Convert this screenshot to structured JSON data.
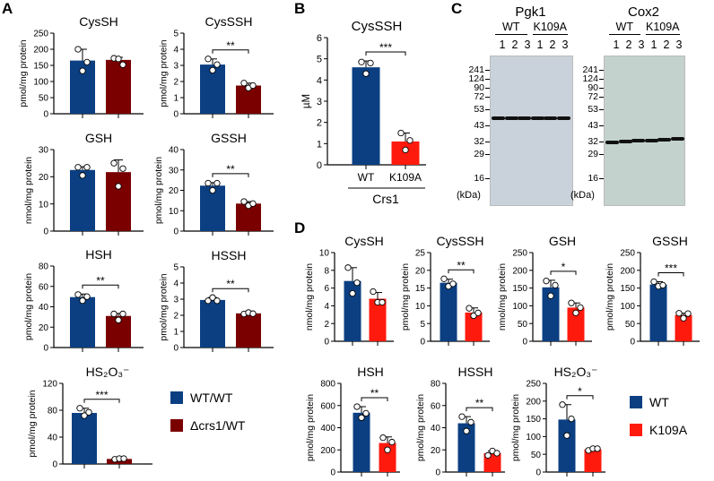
{
  "panel_labels": [
    "A",
    "B",
    "C",
    "D"
  ],
  "legend_A": [
    {
      "label": "WT/WT",
      "color": "#0b3f82"
    },
    {
      "label": "Δcrs1/WT",
      "color": "#7a0000"
    }
  ],
  "legend_D": [
    {
      "label": "WT",
      "color": "#0b3f82"
    },
    {
      "label": "K109A",
      "color": "#ff1a0e"
    }
  ],
  "chart_data": [
    {
      "panel": "A",
      "type": "bar",
      "title": "CysSH",
      "ylabel": "pmol/mg protein",
      "ylim": [
        0,
        250
      ],
      "ticks": [
        0,
        50,
        100,
        150,
        200,
        250
      ],
      "categories": [
        "WT/WT",
        "Δcrs1/WT"
      ],
      "values": [
        165,
        167
      ],
      "sd": [
        35,
        8
      ],
      "points": [
        [
          200,
          133,
          160
        ],
        [
          172,
          170,
          152
        ]
      ],
      "significance": "",
      "colors": [
        "#0b3f82",
        "#7a0000"
      ]
    },
    {
      "panel": "A",
      "type": "bar",
      "title": "CysSSH",
      "ylabel": "pmol/mg protein",
      "ylim": [
        0,
        5
      ],
      "ticks": [
        0,
        1,
        2,
        3,
        4,
        5
      ],
      "categories": [
        "WT/WT",
        "Δcrs1/WT"
      ],
      "values": [
        3.05,
        1.75
      ],
      "sd": [
        0.35,
        0.15
      ],
      "points": [
        [
          3.4,
          2.7,
          3.05
        ],
        [
          1.9,
          1.6,
          1.75
        ]
      ],
      "significance": "**",
      "colors": [
        "#0b3f82",
        "#7a0000"
      ]
    },
    {
      "panel": "A",
      "type": "bar",
      "title": "GSH",
      "ylabel": "nmol/mg protein",
      "ylim": [
        0,
        30
      ],
      "ticks": [
        0,
        10,
        20,
        30
      ],
      "categories": [
        "WT/WT",
        "Δcrs1/WT"
      ],
      "values": [
        22.5,
        21.7
      ],
      "sd": [
        1.2,
        4.5
      ],
      "points": [
        [
          23.5,
          20.5,
          23.5
        ],
        [
          25,
          16.5,
          23
        ]
      ],
      "significance": "",
      "colors": [
        "#0b3f82",
        "#7a0000"
      ]
    },
    {
      "panel": "A",
      "type": "bar",
      "title": "GSSH",
      "ylabel": "pmol/mg protein",
      "ylim": [
        0,
        40
      ],
      "ticks": [
        0,
        10,
        20,
        30,
        40
      ],
      "categories": [
        "WT/WT",
        "Δcrs1/WT"
      ],
      "values": [
        22.3,
        13.5
      ],
      "sd": [
        1.5,
        1
      ],
      "points": [
        [
          23.5,
          20,
          23.5
        ],
        [
          14.5,
          12.5,
          13.5
        ]
      ],
      "significance": "**",
      "colors": [
        "#0b3f82",
        "#7a0000"
      ]
    },
    {
      "panel": "A",
      "type": "bar",
      "title": "HSH",
      "ylabel": "pmol/mg protein",
      "ylim": [
        0,
        80
      ],
      "ticks": [
        0,
        20,
        40,
        60,
        80
      ],
      "categories": [
        "WT/WT",
        "Δcrs1/WT"
      ],
      "values": [
        49.5,
        31
      ],
      "sd": [
        3,
        2.5
      ],
      "points": [
        [
          52,
          46,
          50
        ],
        [
          33,
          27,
          33
        ]
      ],
      "significance": "**",
      "colors": [
        "#0b3f82",
        "#7a0000"
      ]
    },
    {
      "panel": "A",
      "type": "bar",
      "title": "HSSH",
      "ylabel": "pmol/mg protein",
      "ylim": [
        0,
        5
      ],
      "ticks": [
        0,
        1,
        2,
        3,
        4,
        5
      ],
      "categories": [
        "WT/WT",
        "Δcrs1/WT"
      ],
      "values": [
        2.95,
        2.12
      ],
      "sd": [
        0.15,
        0.05
      ],
      "points": [
        [
          2.9,
          3.1,
          2.9
        ],
        [
          2.08,
          2.17,
          2.1
        ]
      ],
      "significance": "**",
      "colors": [
        "#0b3f82",
        "#7a0000"
      ]
    },
    {
      "panel": "A",
      "type": "bar",
      "title": "HS₂O₃⁻",
      "ylabel": "pmol/mg protein",
      "ylim": [
        0,
        120
      ],
      "ticks": [
        0,
        40,
        80,
        120
      ],
      "categories": [
        "WT/WT",
        "Δcrs1/WT"
      ],
      "values": [
        76,
        7.5
      ],
      "sd": [
        7,
        1
      ],
      "points": [
        [
          83,
          72,
          77
        ],
        [
          7,
          8,
          8
        ]
      ],
      "significance": "***",
      "colors": [
        "#0b3f82",
        "#7a0000"
      ]
    },
    {
      "panel": "B",
      "type": "bar",
      "title": "CysSSH",
      "ylabel": "µM",
      "xlabel": "Crs1",
      "ylim": [
        0,
        6
      ],
      "ticks": [
        0,
        1,
        2,
        3,
        4,
        5,
        6
      ],
      "categories": [
        "WT",
        "K109A"
      ],
      "show_categories": true,
      "values": [
        4.6,
        1.1
      ],
      "sd": [
        0.3,
        0.4
      ],
      "points": [
        [
          4.85,
          4.3,
          4.8
        ],
        [
          1.5,
          0.7,
          1.15
        ]
      ],
      "significance": "***",
      "colors": [
        "#0b3f82",
        "#ff1a0e"
      ]
    },
    {
      "panel": "D",
      "type": "bar",
      "title": "CysSH",
      "ylabel": "nmol/mg protein",
      "ylim": [
        0,
        10
      ],
      "ticks": [
        0,
        2,
        4,
        6,
        8,
        10
      ],
      "categories": [
        "WT",
        "K109A"
      ],
      "values": [
        6.8,
        4.8
      ],
      "sd": [
        1.5,
        0.7
      ],
      "points": [
        [
          8.3,
          5.4,
          6.6
        ],
        [
          5.6,
          4.4,
          4.4
        ]
      ],
      "significance": "",
      "colors": [
        "#0b3f82",
        "#ff1a0e"
      ]
    },
    {
      "panel": "D",
      "type": "bar",
      "title": "CysSSH",
      "ylabel": "pmol/mg protein",
      "ylim": [
        0,
        25
      ],
      "ticks": [
        0,
        5,
        10,
        15,
        20,
        25
      ],
      "categories": [
        "WT",
        "K109A"
      ],
      "values": [
        16.5,
        8.1
      ],
      "sd": [
        1,
        1.3
      ],
      "points": [
        [
          17.6,
          15.5,
          16.2
        ],
        [
          9.3,
          7.2,
          8
        ]
      ],
      "significance": "**",
      "colors": [
        "#0b3f82",
        "#ff1a0e"
      ]
    },
    {
      "panel": "D",
      "type": "bar",
      "title": "GSH",
      "ylabel": "nmol/mg protein",
      "ylim": [
        0,
        250
      ],
      "ticks": [
        0,
        50,
        100,
        150,
        200,
        250
      ],
      "categories": [
        "WT",
        "K109A"
      ],
      "values": [
        152,
        95
      ],
      "sd": [
        20,
        13
      ],
      "points": [
        [
          170,
          128,
          158
        ],
        [
          108,
          80,
          95
        ]
      ],
      "significance": "*",
      "colors": [
        "#0b3f82",
        "#ff1a0e"
      ]
    },
    {
      "panel": "D",
      "type": "bar",
      "title": "GSSH",
      "ylabel": "pmol/mg protein",
      "ylim": [
        0,
        250
      ],
      "ticks": [
        0,
        50,
        100,
        150,
        200,
        250
      ],
      "categories": [
        "WT",
        "K109A"
      ],
      "values": [
        160,
        74
      ],
      "sd": [
        8,
        5
      ],
      "points": [
        [
          168,
          155,
          158
        ],
        [
          79,
          65,
          78
        ]
      ],
      "significance": "***",
      "colors": [
        "#0b3f82",
        "#ff1a0e"
      ]
    },
    {
      "panel": "D",
      "type": "bar",
      "title": "HSH",
      "ylabel": "pmol/mg protein",
      "ylim": [
        0,
        800
      ],
      "ticks": [
        0,
        200,
        400,
        600,
        800
      ],
      "categories": [
        "WT",
        "K109A"
      ],
      "values": [
        535,
        262
      ],
      "sd": [
        55,
        55
      ],
      "points": [
        [
          590,
          490,
          530
        ],
        [
          310,
          200,
          270
        ]
      ],
      "significance": "**",
      "colors": [
        "#0b3f82",
        "#ff1a0e"
      ]
    },
    {
      "panel": "D",
      "type": "bar",
      "title": "HSSH",
      "ylabel": "pmol/mg protein",
      "ylim": [
        0,
        80
      ],
      "ticks": [
        0,
        20,
        40,
        60,
        80
      ],
      "categories": [
        "WT",
        "K109A"
      ],
      "values": [
        44,
        17
      ],
      "sd": [
        6,
        2
      ],
      "points": [
        [
          50,
          37,
          45
        ],
        [
          15,
          19,
          17
        ]
      ],
      "significance": "**",
      "colors": [
        "#0b3f82",
        "#ff1a0e"
      ]
    },
    {
      "panel": "D",
      "type": "bar",
      "title": "HS₂O₃⁻",
      "ylabel": "pmol/mg protein",
      "ylim": [
        0,
        250
      ],
      "ticks": [
        0,
        50,
        100,
        150,
        200,
        250
      ],
      "categories": [
        "WT",
        "K109A"
      ],
      "values": [
        148,
        64
      ],
      "sd": [
        42,
        3
      ],
      "points": [
        [
          190,
          103,
          150
        ],
        [
          61,
          66,
          66
        ]
      ],
      "significance": "*",
      "colors": [
        "#0b3f82",
        "#ff1a0e"
      ]
    }
  ],
  "blots": [
    {
      "title": "Pgk1",
      "groups": [
        "WT",
        "K109A"
      ],
      "lanes": [
        "1",
        "2",
        "3",
        "1",
        "2",
        "3"
      ],
      "markers": [
        "241",
        "124",
        "90",
        "72",
        "53",
        "43",
        "32",
        "29",
        "16"
      ],
      "unit": "(kDa)",
      "background": "#c9d2da"
    },
    {
      "title": "Cox2",
      "groups": [
        "WT",
        "K109A"
      ],
      "lanes": [
        "1",
        "2",
        "3",
        "1",
        "2",
        "3"
      ],
      "markers": [
        "241",
        "124",
        "90",
        "72",
        "53",
        "43",
        "32",
        "29",
        "16"
      ],
      "unit": "(kDa)",
      "background": "#c3d2cc"
    }
  ]
}
